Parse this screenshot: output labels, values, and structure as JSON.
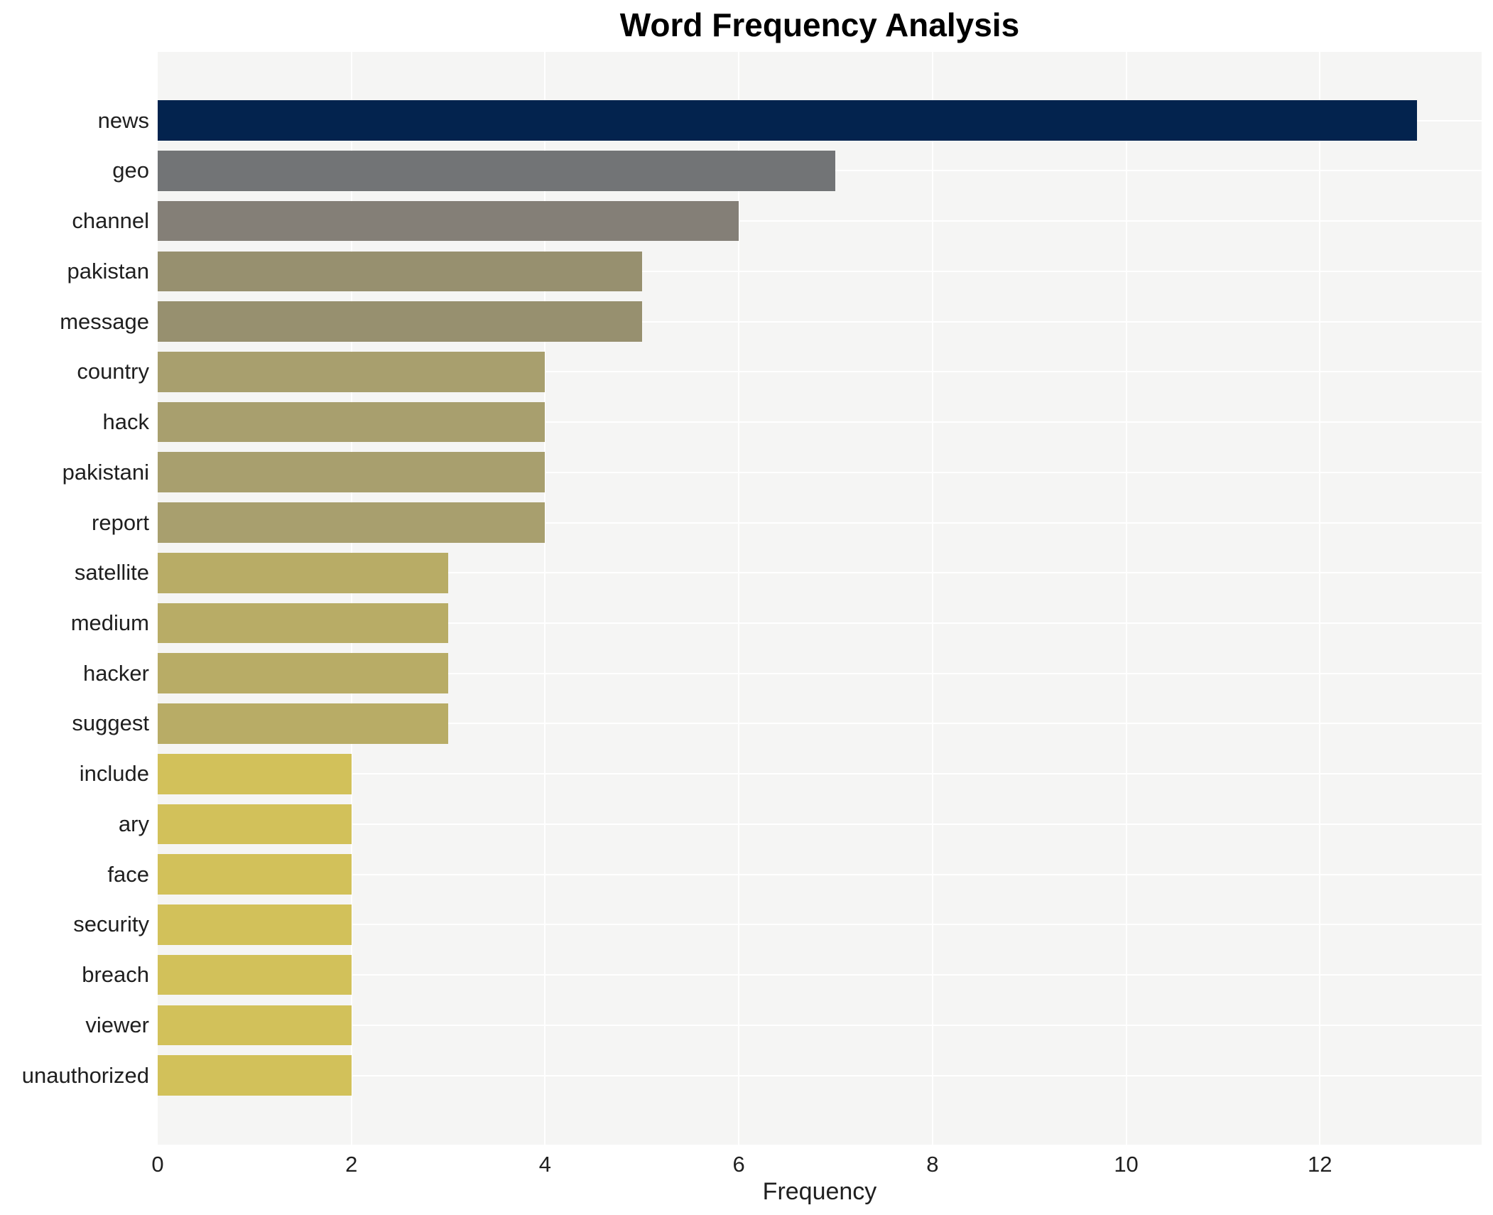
{
  "chart_data": {
    "type": "bar",
    "orientation": "horizontal",
    "title": "Word Frequency Analysis",
    "xlabel": "Frequency",
    "ylabel": "",
    "categories": [
      "news",
      "geo",
      "channel",
      "pakistan",
      "message",
      "country",
      "hack",
      "pakistani",
      "report",
      "satellite",
      "medium",
      "hacker",
      "suggest",
      "include",
      "ary",
      "face",
      "security",
      "breach",
      "viewer",
      "unauthorized"
    ],
    "values": [
      13,
      7,
      6,
      5,
      5,
      4,
      4,
      4,
      4,
      3,
      3,
      3,
      3,
      2,
      2,
      2,
      2,
      2,
      2,
      2
    ],
    "xlim": [
      0,
      13.67
    ],
    "xticks": [
      0,
      2,
      4,
      6,
      8,
      10,
      12
    ],
    "grid": true,
    "legend": false,
    "colors": {
      "bar_by_value": {
        "13": "#03234e",
        "7": "#727476",
        "6": "#847f77",
        "5": "#97906f",
        "4": "#a89f6e",
        "3": "#b8ac66",
        "2": "#d2c15a"
      },
      "panel_bg": "#f5f5f4",
      "grid_line": "#ffffff",
      "tick_text": "#1f1f1f",
      "title_text": "#000000"
    }
  }
}
